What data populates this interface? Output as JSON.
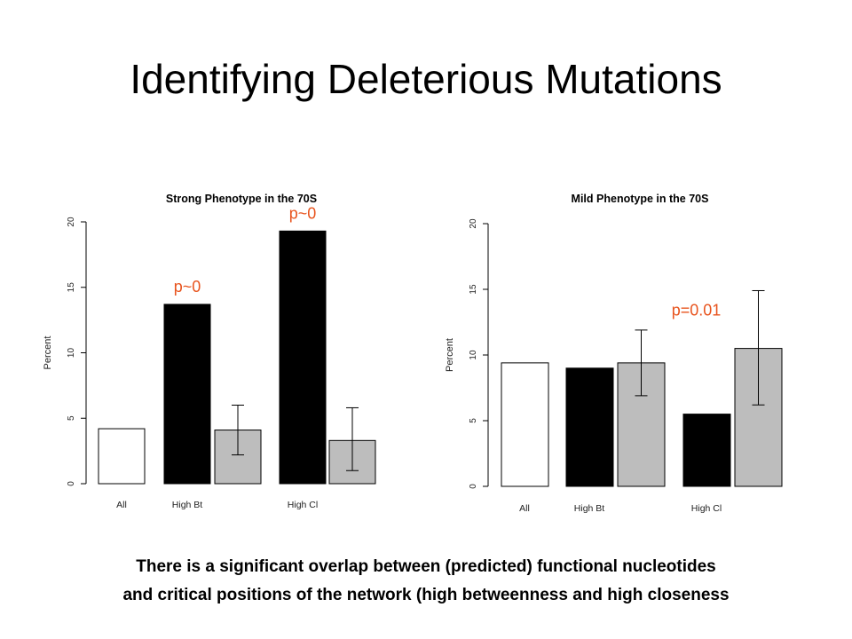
{
  "slide": {
    "title": "Identifying Deleterious Mutations",
    "caption_lines": [
      "There is a significant overlap  between (predicted)  functional nucleotides",
      "and critical positions of the network (high betweenness and high closeness"
    ]
  },
  "colors": {
    "white_bar": "#ffffff",
    "black_bar": "#000000",
    "gray_bar": "#bdbdbd",
    "annotation": "#e8541e"
  },
  "chart_data": [
    {
      "type": "bar",
      "title": "Strong Phenotype in the 70S",
      "ylabel": "Percent",
      "ylim": [
        0,
        20
      ],
      "yticks": [
        "0",
        "5",
        "10",
        "15",
        "20"
      ],
      "category_labels": [
        "All",
        "High Bt",
        "High Cl"
      ],
      "bars": [
        {
          "group": "All",
          "value": 4.2,
          "fill": "white"
        },
        {
          "group": "High Bt",
          "value": 13.7,
          "fill": "black"
        },
        {
          "group": "High Bt",
          "value": 4.1,
          "fill": "gray",
          "err_low": 2.2,
          "err_high": 6.0
        },
        {
          "group": "High Cl",
          "value": 19.3,
          "fill": "black"
        },
        {
          "group": "High Cl",
          "value": 3.3,
          "fill": "gray",
          "err_low": 1.0,
          "err_high": 5.8
        }
      ],
      "annotations": [
        {
          "text": "p~0",
          "bar_index": 1
        },
        {
          "text": "p~0",
          "bar_index": 3
        }
      ]
    },
    {
      "type": "bar",
      "title": "Mild Phenotype in the 70S",
      "ylabel": "Percent",
      "ylim": [
        0,
        20
      ],
      "yticks": [
        "0",
        "5",
        "10",
        "15",
        "20"
      ],
      "category_labels": [
        "All",
        "High Bt",
        "High Cl"
      ],
      "bars": [
        {
          "group": "All",
          "value": 9.4,
          "fill": "white"
        },
        {
          "group": "High Bt",
          "value": 9.0,
          "fill": "black"
        },
        {
          "group": "High Bt",
          "value": 9.4,
          "fill": "gray",
          "err_low": 6.9,
          "err_high": 11.9
        },
        {
          "group": "High Cl",
          "value": 5.5,
          "fill": "black"
        },
        {
          "group": "High Cl",
          "value": 10.5,
          "fill": "gray",
          "err_low": 6.2,
          "err_high": 14.9
        }
      ],
      "annotations": [
        {
          "text": "p=0.01",
          "bar_index": 4
        }
      ]
    }
  ]
}
